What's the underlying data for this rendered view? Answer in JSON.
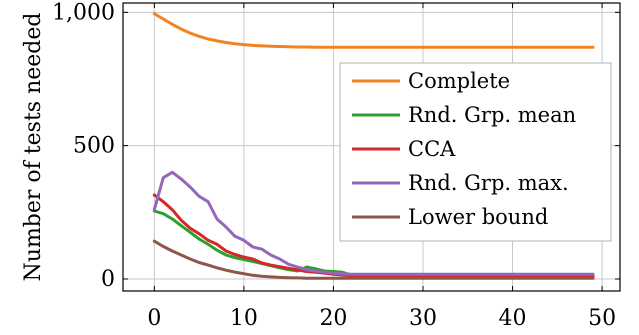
{
  "chart_data": {
    "type": "line",
    "ylabel": "Number of tests needed",
    "xlabel": "",
    "xlim": [
      -3.5,
      52
    ],
    "ylim": [
      -45,
      1035
    ],
    "x_ticks": [
      0,
      10,
      20,
      30,
      40,
      50
    ],
    "x_tick_labels": [
      "0",
      "10",
      "20",
      "30",
      "40",
      "50"
    ],
    "y_ticks": [
      0,
      500,
      1000
    ],
    "y_tick_labels": [
      "0",
      "500",
      "1,000"
    ],
    "grid": true,
    "legend_placement": "center-right",
    "series": [
      {
        "name": "Complete",
        "color": "#f28322",
        "x": [
          0,
          1,
          2,
          3,
          4,
          5,
          6,
          7,
          8,
          9,
          10,
          11,
          12,
          13,
          14,
          15,
          16,
          17,
          18,
          19,
          20,
          21,
          22,
          23,
          24,
          25,
          26,
          27,
          28,
          29,
          30,
          31,
          32,
          33,
          34,
          35,
          36,
          37,
          38,
          39,
          40,
          41,
          42,
          43,
          44,
          45,
          46,
          47,
          48,
          49
        ],
        "y": [
          995,
          975,
          955,
          937,
          922,
          910,
          900,
          893,
          887,
          882,
          879,
          876,
          874,
          873,
          872,
          871,
          870,
          870,
          869,
          869,
          869,
          869,
          869,
          869,
          869,
          869,
          869,
          869,
          869,
          869,
          869,
          869,
          869,
          869,
          869,
          869,
          869,
          869,
          869,
          869,
          869,
          869,
          869,
          869,
          869,
          869,
          869,
          869,
          869,
          869
        ]
      },
      {
        "name": "Rnd. Grp. mean",
        "color": "#2ca02c",
        "x": [
          0,
          1,
          2,
          3,
          4,
          5,
          6,
          7,
          8,
          9,
          10,
          11,
          12,
          13,
          14,
          15,
          16,
          17,
          18,
          19,
          20,
          21,
          22,
          23,
          24,
          25,
          26,
          27,
          28,
          29,
          30,
          31,
          32,
          33,
          34,
          35,
          36,
          37,
          38,
          39,
          40,
          41,
          42,
          43,
          44,
          45,
          46,
          47,
          48,
          49
        ],
        "y": [
          255,
          245,
          225,
          200,
          175,
          150,
          130,
          108,
          90,
          80,
          73,
          66,
          58,
          50,
          42,
          35,
          30,
          45,
          38,
          30,
          28,
          25,
          15,
          12,
          11,
          11,
          11,
          11,
          11,
          11,
          11,
          11,
          11,
          11,
          11,
          11,
          11,
          11,
          11,
          11,
          11,
          11,
          11,
          11,
          11,
          11,
          11,
          11,
          11,
          11
        ]
      },
      {
        "name": "CCA",
        "color": "#d62728",
        "x": [
          0,
          1,
          2,
          3,
          4,
          5,
          6,
          7,
          8,
          9,
          10,
          11,
          12,
          13,
          14,
          15,
          16,
          17,
          18,
          19,
          20,
          21,
          22,
          23,
          24,
          25,
          26,
          27,
          28,
          29,
          30,
          31,
          32,
          33,
          34,
          35,
          36,
          37,
          38,
          39,
          40,
          41,
          42,
          43,
          44,
          45,
          46,
          47,
          48,
          49
        ],
        "y": [
          315,
          290,
          260,
          220,
          190,
          170,
          145,
          130,
          105,
          92,
          82,
          75,
          60,
          52,
          46,
          40,
          34,
          28,
          25,
          22,
          18,
          15,
          12,
          11,
          10,
          10,
          10,
          10,
          10,
          10,
          10,
          10,
          10,
          10,
          10,
          10,
          10,
          10,
          10,
          10,
          10,
          10,
          10,
          10,
          10,
          10,
          10,
          10,
          10,
          10
        ]
      },
      {
        "name": "Rnd. Grp. max.",
        "color": "#9467bd",
        "x": [
          0,
          1,
          2,
          3,
          4,
          5,
          6,
          7,
          8,
          9,
          10,
          11,
          12,
          13,
          14,
          15,
          16,
          17,
          18,
          19,
          20,
          21,
          22,
          23,
          24,
          25,
          26,
          27,
          28,
          29,
          30,
          31,
          32,
          33,
          34,
          35,
          36,
          37,
          38,
          39,
          40,
          41,
          42,
          43,
          44,
          45,
          46,
          47,
          48,
          49
        ],
        "y": [
          260,
          380,
          400,
          375,
          345,
          310,
          290,
          225,
          195,
          160,
          145,
          120,
          112,
          90,
          75,
          55,
          45,
          35,
          30,
          25,
          22,
          20,
          18,
          18,
          18,
          18,
          18,
          18,
          18,
          18,
          18,
          18,
          18,
          18,
          18,
          18,
          18,
          18,
          18,
          18,
          18,
          18,
          18,
          18,
          18,
          18,
          18,
          18,
          18,
          18
        ]
      },
      {
        "name": "Lower bound",
        "color": "#8c564b",
        "x": [
          0,
          1,
          2,
          3,
          4,
          5,
          6,
          7,
          8,
          9,
          10,
          11,
          12,
          13,
          14,
          15,
          16,
          17,
          18,
          19,
          20,
          21,
          22,
          23,
          24,
          25,
          26,
          27,
          28,
          29,
          30,
          31,
          32,
          33,
          34,
          35,
          36,
          37,
          38,
          39,
          40,
          41,
          42,
          43,
          44,
          45,
          46,
          47,
          48,
          49
        ],
        "y": [
          142,
          122,
          105,
          90,
          75,
          62,
          52,
          42,
          33,
          26,
          20,
          14,
          10,
          8,
          6,
          5,
          4,
          3,
          3,
          3,
          3,
          3,
          3,
          3,
          3,
          3,
          3,
          3,
          3,
          3,
          3,
          3,
          3,
          3,
          3,
          3,
          3,
          3,
          3,
          3,
          3,
          3,
          3,
          3,
          3,
          3,
          3,
          3,
          3,
          3
        ]
      }
    ]
  }
}
